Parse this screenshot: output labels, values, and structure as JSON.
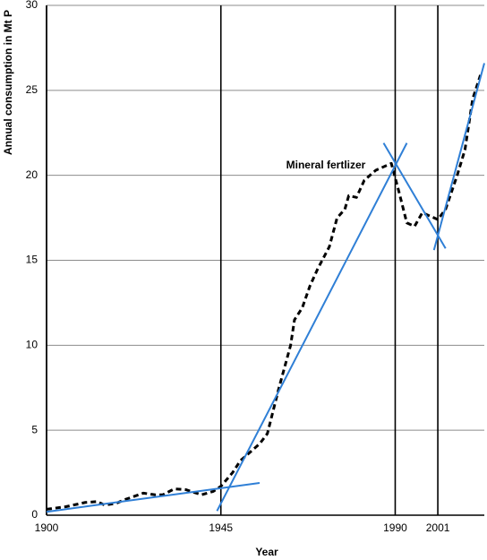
{
  "chart_data": {
    "type": "line",
    "ylabel": "Annual consumption in Mt P",
    "xlabel": "Year",
    "annotation": "Mineral fertlizer",
    "xlim": [
      1900,
      2013
    ],
    "ylim": [
      0,
      30
    ],
    "xticks": [
      1900,
      1945,
      1990,
      2001
    ],
    "yticks": [
      0,
      5,
      10,
      15,
      20,
      25,
      30
    ],
    "grid": true,
    "series": [
      {
        "color": "#000000",
        "dashed": true,
        "x": [
          1900,
          1905,
          1910,
          1913,
          1915,
          1918,
          1920,
          1925,
          1928,
          1930,
          1933,
          1936,
          1940,
          1943,
          1945,
          1948,
          1950,
          1953,
          1955,
          1957,
          1960,
          1963,
          1964,
          1966,
          1968,
          1970,
          1973,
          1975,
          1977,
          1978,
          1980,
          1982,
          1985,
          1988,
          1989,
          1991,
          1993,
          1995,
          1997,
          1999,
          2001,
          2003,
          2006,
          2008,
          2010,
          2012
        ],
        "values": [
          0.35,
          0.5,
          0.75,
          0.8,
          0.6,
          0.7,
          0.9,
          1.3,
          1.2,
          1.2,
          1.55,
          1.5,
          1.2,
          1.4,
          1.7,
          2.5,
          3.2,
          3.8,
          4.2,
          4.8,
          7.5,
          10,
          11.5,
          12.2,
          13.5,
          14.5,
          15.8,
          17.5,
          18,
          18.8,
          18.7,
          19.7,
          20.3,
          20.6,
          20.7,
          19,
          17.2,
          17,
          17.8,
          17.6,
          17.4,
          18,
          20,
          21.5,
          24.5,
          25.9
        ]
      },
      {
        "color": "#2f7fd6",
        "x": [
          1900,
          1955
        ],
        "values": [
          0.2,
          1.9
        ]
      },
      {
        "color": "#2f7fd6",
        "x": [
          1944,
          1993
        ],
        "values": [
          0.25,
          21.9
        ]
      },
      {
        "color": "#2f7fd6",
        "x": [
          1987,
          2003
        ],
        "values": [
          21.9,
          15.7
        ]
      },
      {
        "color": "#2f7fd6",
        "x": [
          2000,
          2013
        ],
        "values": [
          15.6,
          26.6
        ]
      }
    ]
  }
}
